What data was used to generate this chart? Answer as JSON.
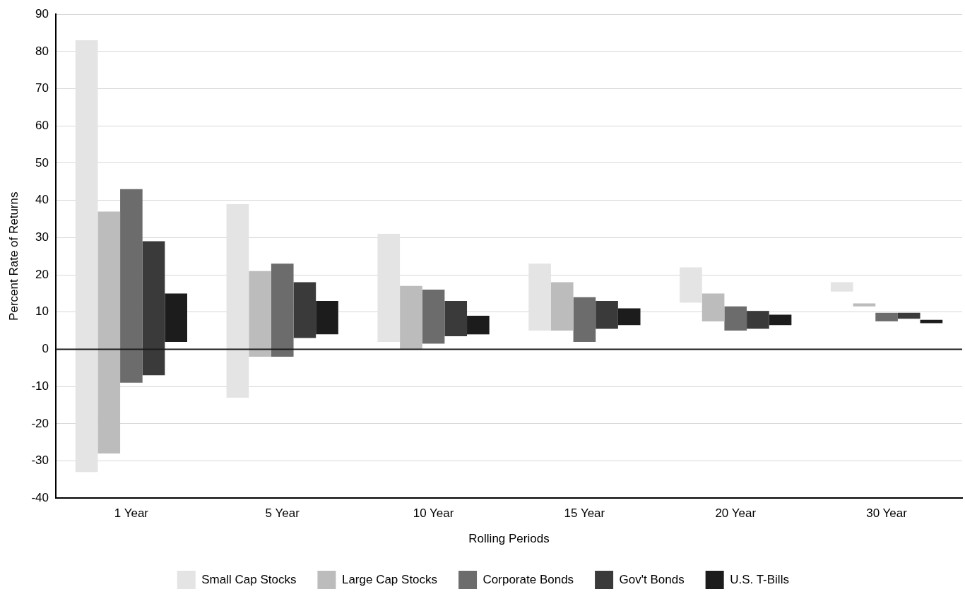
{
  "chart_data": {
    "type": "bar",
    "xlabel": "Rolling Periods",
    "ylabel": "Percent Rate of Returns",
    "categories": [
      "1 Year",
      "5 Year",
      "10 Year",
      "15 Year",
      "20 Year",
      "30 Year"
    ],
    "series": [
      {
        "name": "Small Cap Stocks",
        "color": "#e4e4e4",
        "base": [
          -33,
          -13,
          2,
          5,
          12.5,
          15.5
        ],
        "values": [
          116,
          52,
          29,
          18,
          9.5,
          2.5
        ]
      },
      {
        "name": "Large Cap Stocks",
        "color": "#bcbcbc",
        "base": [
          -28,
          -2,
          0,
          5,
          7.5,
          11.5
        ],
        "values": [
          65,
          23,
          17,
          13,
          7.5,
          0.8
        ]
      },
      {
        "name": "Corporate Bonds",
        "color": "#6c6c6c",
        "base": [
          -9,
          -2,
          1.5,
          2,
          5,
          7.5
        ],
        "values": [
          52,
          25,
          14.5,
          12,
          6.5,
          2.3
        ]
      },
      {
        "name": "Gov't Bonds",
        "color": "#3a3a3a",
        "base": [
          -7,
          3,
          3.5,
          5.5,
          5.5,
          8.2
        ],
        "values": [
          36,
          15,
          9.5,
          7.5,
          4.8,
          1.6
        ]
      },
      {
        "name": "U.S. T-Bills",
        "color": "#1c1c1c",
        "base": [
          2,
          4,
          4,
          6.5,
          6.5,
          7
        ],
        "values": [
          13,
          9,
          5,
          4.5,
          2.8,
          0.9
        ]
      }
    ],
    "ylim": [
      -40,
      90
    ],
    "yticks": [
      -40,
      -30,
      -20,
      -10,
      0,
      10,
      20,
      30,
      40,
      50,
      60,
      70,
      80,
      90
    ],
    "ref_lines": [
      {
        "axis": "y",
        "value": 0,
        "color": "#1a1a1a"
      }
    ],
    "grid": "y",
    "legend": "bottom"
  }
}
